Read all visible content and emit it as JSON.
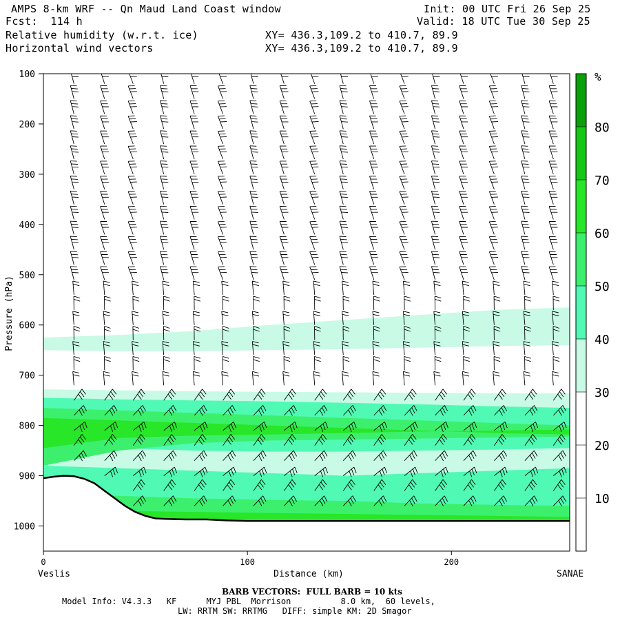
{
  "header": {
    "title": "AMPS 8-km WRF -- Qn Maud Land Coast window",
    "forecast": "Fcst:  114 h",
    "init": "Init: 00 UTC Fri 26 Sep 25",
    "valid": "Valid: 18 UTC Tue 30 Sep 25",
    "field1": "Relative humidity (w.r.t. ice)",
    "field2": "Horizontal wind vectors",
    "xy1": "XY= 436.3,109.2 to 410.7, 89.9",
    "xy2": "XY= 436.3,109.2 to 410.7, 89.9"
  },
  "footer": {
    "barb_note": "BARB VECTORS:  FULL BARB = 10 kts",
    "model_line1": "Model Info: V4.3.3   KF      MYJ PBL  Morrison          8.0 km,  60 levels,",
    "model_line2": "LW: RRTM SW: RRTMG   DIFF: simple KM: 2D Smagor"
  },
  "chart_data": {
    "type": "heatmap",
    "title": "Relative humidity (w.r.t. ice) cross-section with horizontal wind barbs",
    "xlabel": "Distance (km)",
    "ylabel": "Pressure (hPa)",
    "xlim": [
      0,
      258
    ],
    "ylim": [
      1050,
      100
    ],
    "x_ticks": [
      0,
      100,
      200
    ],
    "x_tick_labels": [
      "0",
      "100",
      "200"
    ],
    "y_ticks": [
      100,
      200,
      300,
      400,
      500,
      600,
      700,
      800,
      900,
      1000
    ],
    "x_end_labels": {
      "left": "Veslis",
      "right": "SANAE"
    },
    "colorbar": {
      "unit": "%",
      "levels": [
        10,
        20,
        30,
        40,
        50,
        60,
        70,
        80
      ],
      "colors": [
        "#ffffff",
        "#ffffff",
        "#ffffff",
        "#c8fae6",
        "#50fab4",
        "#3cf06e",
        "#28e628",
        "#14c814",
        "#0aa00a"
      ]
    },
    "rh_bands": [
      {
        "class": 3,
        "p_top": [
          625,
          620,
          612,
          600,
          590,
          580,
          570,
          565
        ],
        "p_bot": [
          650,
          652,
          652,
          650,
          648,
          645,
          642,
          640
        ]
      },
      {
        "class": 3,
        "p_top": [
          728,
          730,
          732,
          733,
          734,
          735,
          736,
          736
        ],
        "p_bot": [
          990,
          990,
          990,
          990,
          990,
          990,
          990,
          990
        ]
      },
      {
        "class": 4,
        "p_top": [
          745,
          748,
          750,
          752,
          755,
          758,
          762,
          765
        ],
        "p_bot": [
          990,
          990,
          990,
          990,
          990,
          990,
          990,
          990
        ]
      },
      {
        "class": 3,
        "p_top": [
          840,
          845,
          850,
          852,
          852,
          850,
          848,
          845
        ],
        "p_bot": [
          880,
          885,
          890,
          895,
          900,
          895,
          890,
          885
        ]
      },
      {
        "class": 5,
        "p_top": [
          765,
          770,
          775,
          780,
          785,
          790,
          795,
          800
        ],
        "p_bot": [
          880,
          850,
          835,
          830,
          828,
          826,
          824,
          822
        ]
      },
      {
        "class": 6,
        "p_top": [
          785,
          790,
          795,
          800,
          805,
          810,
          815,
          818
        ],
        "p_bot": [
          845,
          825,
          820,
          818,
          815,
          812,
          810,
          808
        ]
      },
      {
        "class": 5,
        "p_top": [
          935,
          940,
          945,
          948,
          950,
          955,
          958,
          960
        ],
        "p_bot": [
          990,
          990,
          990,
          990,
          990,
          990,
          990,
          990
        ]
      },
      {
        "class": 6,
        "p_top": [
          968,
          970,
          972,
          974,
          976,
          978,
          980,
          982
        ],
        "p_bot": [
          990,
          990,
          990,
          990,
          990,
          990,
          990,
          990
        ]
      }
    ],
    "band_x_km": [
      0,
      37,
      74,
      111,
      148,
      185,
      222,
      258
    ],
    "terrain": {
      "x_km": [
        0,
        5,
        10,
        15,
        20,
        25,
        30,
        35,
        40,
        45,
        50,
        55,
        60,
        70,
        80,
        90,
        100,
        120,
        150,
        200,
        258
      ],
      "p_hpa": [
        905,
        902,
        900,
        901,
        906,
        915,
        930,
        945,
        960,
        972,
        980,
        985,
        986,
        987,
        987,
        989,
        990,
        990,
        990,
        990,
        990
      ]
    },
    "wind_barb_columns_km": [
      15,
      30,
      44,
      59,
      74,
      88,
      103,
      118,
      133,
      147,
      162,
      177,
      192,
      206,
      221,
      236,
      250
    ],
    "wind_barb_levels_hpa": [
      120,
      150,
      180,
      210,
      240,
      270,
      300,
      330,
      360,
      390,
      420,
      450,
      480,
      510,
      540,
      570,
      600,
      630,
      660,
      690,
      720,
      750,
      780,
      810,
      840,
      870,
      900,
      930,
      960
    ]
  }
}
